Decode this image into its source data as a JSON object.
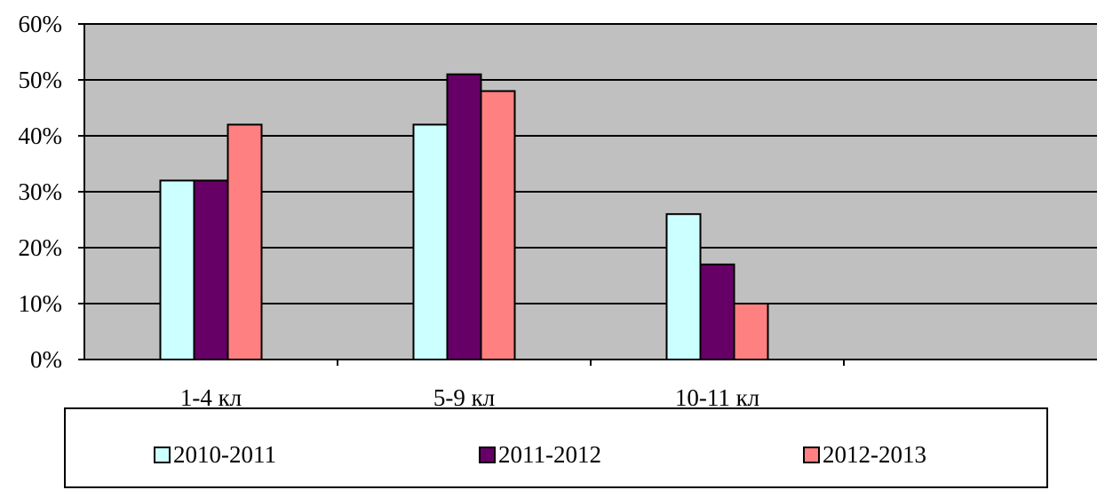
{
  "chart_data": {
    "type": "bar",
    "categories": [
      "1-4 кл",
      "5-9 кл",
      "10-11 кл",
      ""
    ],
    "series": [
      {
        "name": "2010-2011",
        "color": "#ccffff",
        "values": [
          32,
          42,
          26,
          null
        ]
      },
      {
        "name": "2011-2012",
        "color": "#660066",
        "values": [
          32,
          51,
          17,
          null
        ]
      },
      {
        "name": "2012-2013",
        "color": "#ff8080",
        "values": [
          42,
          48,
          10,
          null
        ]
      }
    ],
    "ylim": [
      0,
      60
    ],
    "yticks": [
      "0%",
      "10%",
      "20%",
      "30%",
      "40%",
      "50%",
      "60%"
    ],
    "grid": true,
    "plot_background": "#c0c0c0",
    "legend_placement": "bottom"
  }
}
